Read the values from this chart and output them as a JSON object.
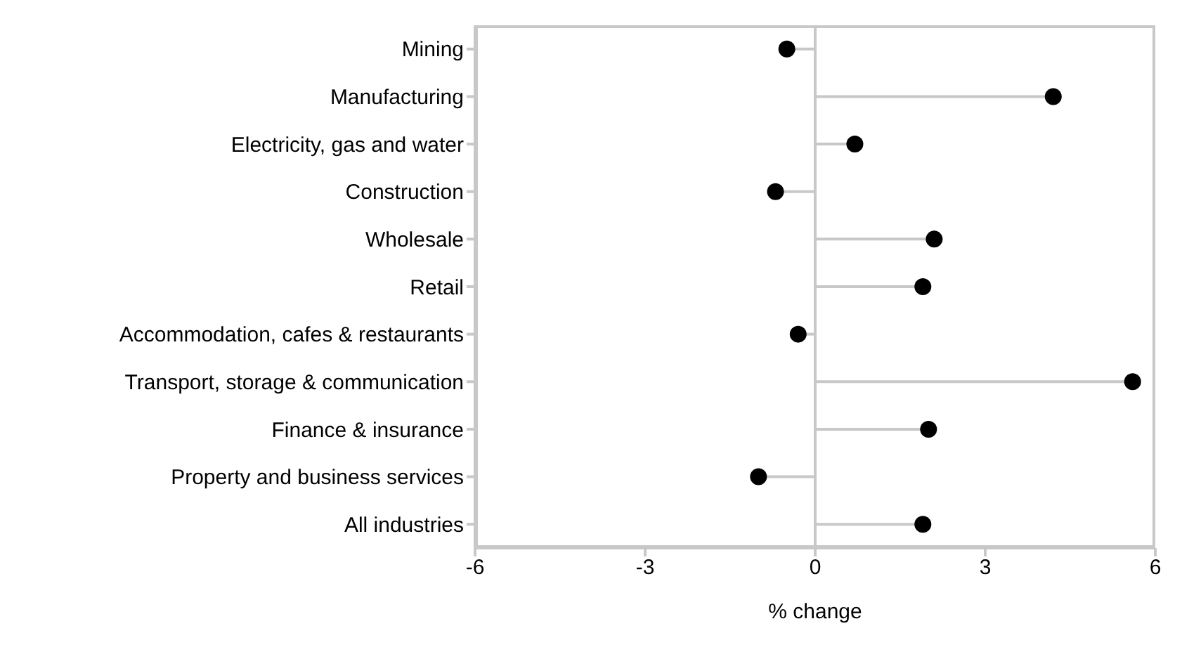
{
  "chart_data": {
    "type": "lollipop",
    "orientation": "horizontal",
    "xlabel": "% change",
    "categories": [
      "Mining",
      "Manufacturing",
      "Electricity, gas and water",
      "Construction",
      "Wholesale",
      "Retail",
      "Accommodation, cafes & restaurants",
      "Transport, storage & communication",
      "Finance & insurance",
      "Property and business services",
      "All industries"
    ],
    "series": [
      {
        "color": "#000000",
        "values": [
          -0.5,
          4.2,
          0.7,
          -0.7,
          2.1,
          1.9,
          -0.3,
          5.6,
          2.0,
          -1.0,
          1.9
        ]
      }
    ],
    "xlim": [
      -6,
      6
    ],
    "xticks": [
      -6,
      -3,
      0,
      3,
      6
    ],
    "ref_lines": [
      {
        "axis": "x",
        "value": 0,
        "color": "#c8c8c8"
      }
    ],
    "grid": false,
    "marker": "circle"
  }
}
